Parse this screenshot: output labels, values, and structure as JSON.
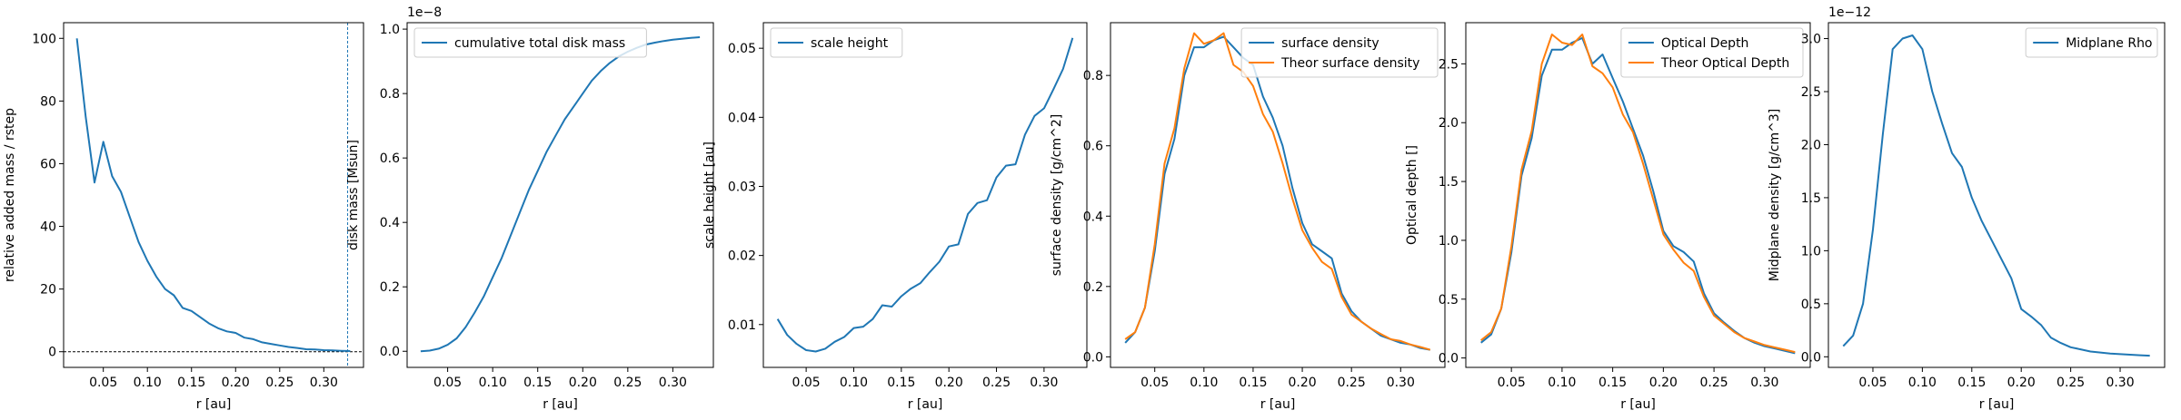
{
  "chart_data": [
    {
      "type": "line",
      "xlabel": "r [au]",
      "ylabel": "relative added mass / rstep",
      "xlim": [
        0.005,
        0.345
      ],
      "ylim": [
        -5,
        105
      ],
      "xticks": [
        0.05,
        0.1,
        0.15,
        0.2,
        0.25,
        0.3
      ],
      "xtick_labels": [
        "0.05",
        "0.10",
        "0.15",
        "0.20",
        "0.25",
        "0.30"
      ],
      "yticks": [
        0,
        20,
        40,
        60,
        80,
        100
      ],
      "ytick_labels": [
        "0",
        "20",
        "40",
        "60",
        "80",
        "100"
      ],
      "offset_text": "",
      "legend": [],
      "hline_dashed": 0,
      "vline_dashed": 0.327,
      "series": [
        {
          "color": "#1f77b4",
          "x": [
            0.02,
            0.03,
            0.04,
            0.05,
            0.06,
            0.07,
            0.08,
            0.09,
            0.1,
            0.11,
            0.12,
            0.13,
            0.14,
            0.15,
            0.16,
            0.17,
            0.18,
            0.19,
            0.2,
            0.21,
            0.22,
            0.23,
            0.24,
            0.25,
            0.26,
            0.27,
            0.28,
            0.29,
            0.3,
            0.31,
            0.32,
            0.33
          ],
          "y": [
            100,
            75,
            54,
            67,
            56,
            51,
            43,
            35,
            29,
            24,
            20,
            18,
            14,
            13,
            11,
            9,
            7.5,
            6.5,
            6,
            4.5,
            4,
            3,
            2.5,
            2,
            1.5,
            1.2,
            0.8,
            0.7,
            0.5,
            0.4,
            0.3,
            0.2
          ]
        }
      ]
    },
    {
      "type": "line",
      "xlabel": "r [au]",
      "ylabel": "disk mass [Msun]",
      "xlim": [
        0.005,
        0.345
      ],
      "ylim": [
        -0.05,
        1.02
      ],
      "xticks": [
        0.05,
        0.1,
        0.15,
        0.2,
        0.25,
        0.3
      ],
      "xtick_labels": [
        "0.05",
        "0.10",
        "0.15",
        "0.20",
        "0.25",
        "0.30"
      ],
      "yticks": [
        0,
        0.2,
        0.4,
        0.6,
        0.8,
        1.0
      ],
      "ytick_labels": [
        "0.0",
        "0.2",
        "0.4",
        "0.6",
        "0.8",
        "1.0"
      ],
      "offset_text": "1e−8",
      "legend": [
        "cumulative total disk mass"
      ],
      "legend_loc": "upper left",
      "series": [
        {
          "name": "cumulative total disk mass",
          "color": "#1f77b4",
          "x": [
            0.02,
            0.03,
            0.04,
            0.05,
            0.06,
            0.07,
            0.08,
            0.09,
            0.1,
            0.11,
            0.12,
            0.13,
            0.14,
            0.15,
            0.16,
            0.17,
            0.18,
            0.19,
            0.2,
            0.21,
            0.22,
            0.23,
            0.24,
            0.25,
            0.26,
            0.27,
            0.28,
            0.29,
            0.3,
            0.31,
            0.32,
            0.33
          ],
          "y": [
            0,
            0.002,
            0.008,
            0.02,
            0.04,
            0.075,
            0.12,
            0.17,
            0.23,
            0.29,
            0.36,
            0.43,
            0.5,
            0.56,
            0.62,
            0.67,
            0.72,
            0.76,
            0.8,
            0.84,
            0.87,
            0.895,
            0.915,
            0.93,
            0.942,
            0.952,
            0.958,
            0.963,
            0.967,
            0.97,
            0.973,
            0.975
          ]
        }
      ]
    },
    {
      "type": "line",
      "xlabel": "r [au]",
      "ylabel": "scale height [au]",
      "xlim": [
        0.005,
        0.345
      ],
      "ylim": [
        0.0038,
        0.0537
      ],
      "xticks": [
        0.05,
        0.1,
        0.15,
        0.2,
        0.25,
        0.3
      ],
      "xtick_labels": [
        "0.05",
        "0.10",
        "0.15",
        "0.20",
        "0.25",
        "0.30"
      ],
      "yticks": [
        0.01,
        0.02,
        0.03,
        0.04,
        0.05
      ],
      "ytick_labels": [
        "0.01",
        "0.02",
        "0.03",
        "0.04",
        "0.05"
      ],
      "offset_text": "",
      "legend": [
        "scale height"
      ],
      "legend_loc": "upper left",
      "series": [
        {
          "name": "scale height",
          "color": "#1f77b4",
          "x": [
            0.02,
            0.03,
            0.04,
            0.05,
            0.06,
            0.07,
            0.08,
            0.09,
            0.1,
            0.11,
            0.12,
            0.13,
            0.14,
            0.15,
            0.16,
            0.17,
            0.18,
            0.19,
            0.2,
            0.21,
            0.22,
            0.23,
            0.24,
            0.25,
            0.26,
            0.27,
            0.28,
            0.29,
            0.3,
            0.31,
            0.32,
            0.33
          ],
          "y": [
            0.0108,
            0.0085,
            0.0072,
            0.0063,
            0.0061,
            0.0065,
            0.0075,
            0.0082,
            0.0095,
            0.0097,
            0.0108,
            0.0128,
            0.0126,
            0.0141,
            0.0152,
            0.016,
            0.0176,
            0.0191,
            0.0213,
            0.0216,
            0.026,
            0.0276,
            0.028,
            0.0313,
            0.033,
            0.0332,
            0.0375,
            0.0402,
            0.0413,
            0.0441,
            0.047,
            0.0515
          ]
        }
      ]
    },
    {
      "type": "line",
      "xlabel": "r [au]",
      "ylabel": "surface density [g/cm^2]",
      "xlim": [
        0.005,
        0.345
      ],
      "ylim": [
        -0.03,
        0.95
      ],
      "xticks": [
        0.05,
        0.1,
        0.15,
        0.2,
        0.25,
        0.3
      ],
      "xtick_labels": [
        "0.05",
        "0.10",
        "0.15",
        "0.20",
        "0.25",
        "0.30"
      ],
      "yticks": [
        0,
        0.2,
        0.4,
        0.6,
        0.8
      ],
      "ytick_labels": [
        "0.0",
        "0.2",
        "0.4",
        "0.6",
        "0.8"
      ],
      "offset_text": "",
      "legend": [
        "surface density",
        "Theor surface density"
      ],
      "legend_loc": "upper right",
      "series": [
        {
          "name": "surface density",
          "color": "#1f77b4",
          "x": [
            0.02,
            0.03,
            0.04,
            0.05,
            0.06,
            0.07,
            0.08,
            0.09,
            0.1,
            0.11,
            0.12,
            0.13,
            0.14,
            0.15,
            0.16,
            0.17,
            0.18,
            0.19,
            0.2,
            0.21,
            0.22,
            0.23,
            0.24,
            0.25,
            0.26,
            0.27,
            0.28,
            0.29,
            0.3,
            0.31,
            0.32,
            0.33
          ],
          "y": [
            0.04,
            0.07,
            0.14,
            0.3,
            0.52,
            0.62,
            0.8,
            0.88,
            0.88,
            0.9,
            0.91,
            0.88,
            0.85,
            0.83,
            0.74,
            0.68,
            0.6,
            0.48,
            0.38,
            0.32,
            0.3,
            0.28,
            0.18,
            0.13,
            0.1,
            0.08,
            0.06,
            0.05,
            0.04,
            0.035,
            0.025,
            0.02
          ]
        },
        {
          "name": "Theor surface density",
          "color": "#ff7f0e",
          "x": [
            0.02,
            0.03,
            0.04,
            0.05,
            0.06,
            0.07,
            0.08,
            0.09,
            0.1,
            0.11,
            0.12,
            0.13,
            0.14,
            0.15,
            0.16,
            0.17,
            0.18,
            0.19,
            0.2,
            0.21,
            0.22,
            0.23,
            0.24,
            0.25,
            0.26,
            0.27,
            0.28,
            0.29,
            0.3,
            0.31,
            0.32,
            0.33
          ],
          "y": [
            0.05,
            0.07,
            0.14,
            0.32,
            0.55,
            0.65,
            0.82,
            0.92,
            0.89,
            0.9,
            0.92,
            0.83,
            0.81,
            0.77,
            0.69,
            0.64,
            0.55,
            0.45,
            0.36,
            0.31,
            0.27,
            0.25,
            0.17,
            0.12,
            0.1,
            0.08,
            0.065,
            0.05,
            0.045,
            0.035,
            0.028,
            0.02
          ]
        }
      ]
    },
    {
      "type": "line",
      "xlabel": "r [au]",
      "ylabel": "Optical depth []",
      "xlim": [
        0.005,
        0.345
      ],
      "ylim": [
        -0.08,
        2.85
      ],
      "xticks": [
        0.05,
        0.1,
        0.15,
        0.2,
        0.25,
        0.3
      ],
      "xtick_labels": [
        "0.05",
        "0.10",
        "0.15",
        "0.20",
        "0.25",
        "0.30"
      ],
      "yticks": [
        0,
        0.5,
        1.0,
        1.5,
        2.0,
        2.5
      ],
      "ytick_labels": [
        "0.0",
        "0.5",
        "1.0",
        "1.5",
        "2.0",
        "2.5"
      ],
      "offset_text": "",
      "legend": [
        "Optical Depth",
        "Theor Optical Depth"
      ],
      "legend_loc": "upper right",
      "series": [
        {
          "name": "Optical Depth",
          "color": "#1f77b4",
          "x": [
            0.02,
            0.03,
            0.04,
            0.05,
            0.06,
            0.07,
            0.08,
            0.09,
            0.1,
            0.11,
            0.12,
            0.13,
            0.14,
            0.15,
            0.16,
            0.17,
            0.18,
            0.19,
            0.2,
            0.21,
            0.22,
            0.23,
            0.24,
            0.25,
            0.26,
            0.27,
            0.28,
            0.29,
            0.3,
            0.31,
            0.32,
            0.33
          ],
          "y": [
            0.13,
            0.2,
            0.42,
            0.9,
            1.55,
            1.87,
            2.4,
            2.62,
            2.62,
            2.68,
            2.72,
            2.5,
            2.58,
            2.38,
            2.18,
            1.95,
            1.72,
            1.42,
            1.08,
            0.95,
            0.9,
            0.82,
            0.55,
            0.38,
            0.3,
            0.23,
            0.17,
            0.13,
            0.1,
            0.08,
            0.06,
            0.04
          ]
        },
        {
          "name": "Theor Optical Depth",
          "color": "#ff7f0e",
          "x": [
            0.02,
            0.03,
            0.04,
            0.05,
            0.06,
            0.07,
            0.08,
            0.09,
            0.1,
            0.11,
            0.12,
            0.13,
            0.14,
            0.15,
            0.16,
            0.17,
            0.18,
            0.19,
            0.2,
            0.21,
            0.22,
            0.23,
            0.24,
            0.25,
            0.26,
            0.27,
            0.28,
            0.29,
            0.3,
            0.31,
            0.32,
            0.33
          ],
          "y": [
            0.15,
            0.22,
            0.42,
            0.95,
            1.6,
            1.93,
            2.5,
            2.75,
            2.68,
            2.66,
            2.75,
            2.48,
            2.42,
            2.3,
            2.07,
            1.92,
            1.65,
            1.35,
            1.05,
            0.92,
            0.81,
            0.74,
            0.52,
            0.36,
            0.29,
            0.22,
            0.17,
            0.14,
            0.11,
            0.09,
            0.07,
            0.05
          ]
        }
      ]
    },
    {
      "type": "line",
      "xlabel": "r [au]",
      "ylabel": "Midplane density [g/cm^3]",
      "xlim": [
        0.005,
        0.345
      ],
      "ylim": [
        -0.1,
        3.15
      ],
      "xticks": [
        0.05,
        0.1,
        0.15,
        0.2,
        0.25,
        0.3
      ],
      "xtick_labels": [
        "0.05",
        "0.10",
        "0.15",
        "0.20",
        "0.25",
        "0.30"
      ],
      "yticks": [
        0,
        0.5,
        1.0,
        1.5,
        2.0,
        2.5,
        3.0
      ],
      "ytick_labels": [
        "0.0",
        "0.5",
        "1.0",
        "1.5",
        "2.0",
        "2.5",
        "3.0"
      ],
      "offset_text": "1e−12",
      "legend": [
        "Midplane Rho"
      ],
      "legend_loc": "upper right",
      "series": [
        {
          "name": "Midplane Rho",
          "color": "#1f77b4",
          "x": [
            0.02,
            0.03,
            0.04,
            0.05,
            0.06,
            0.07,
            0.08,
            0.09,
            0.1,
            0.11,
            0.12,
            0.13,
            0.14,
            0.15,
            0.16,
            0.17,
            0.18,
            0.19,
            0.2,
            0.21,
            0.22,
            0.23,
            0.24,
            0.25,
            0.26,
            0.27,
            0.28,
            0.29,
            0.3,
            0.31,
            0.32,
            0.33
          ],
          "y": [
            0.1,
            0.2,
            0.5,
            1.2,
            2.1,
            2.9,
            3.0,
            3.03,
            2.9,
            2.5,
            2.2,
            1.92,
            1.79,
            1.5,
            1.28,
            1.1,
            0.92,
            0.74,
            0.45,
            0.38,
            0.3,
            0.18,
            0.13,
            0.09,
            0.07,
            0.05,
            0.04,
            0.03,
            0.025,
            0.02,
            0.015,
            0.01
          ]
        }
      ]
    }
  ]
}
